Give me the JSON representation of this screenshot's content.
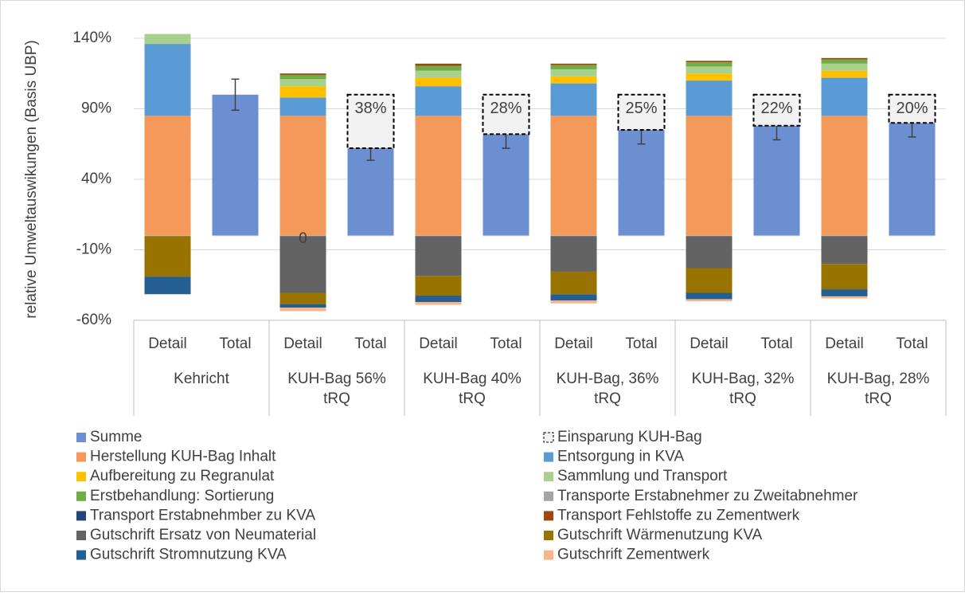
{
  "chart_data": {
    "type": "stacked_bar",
    "y_label": "relative Umweltauswikungen (Basis UBP)",
    "categories": [
      "Detail",
      "Total",
      "Detail",
      "Total",
      "Detail",
      "Total",
      "Detail",
      "Total",
      "Detail",
      "Total",
      "Detail",
      "Total"
    ],
    "groups": [
      "Kehricht",
      "KUH-Bag 56% tRQ",
      "KUH-Bag 40% tRQ",
      "KUH-Bag, 36% tRQ",
      "KUH-Bag, 32% tRQ",
      "KUH-Bag, 28% tRQ"
    ],
    "annotation": "0",
    "ylim": [
      -60,
      140
    ],
    "yticks": [
      {
        "value": -60,
        "label": "-60%"
      },
      {
        "value": -10,
        "label": "-10%"
      },
      {
        "value": 40,
        "label": "40%"
      },
      {
        "value": 90,
        "label": "90%"
      },
      {
        "value": 140,
        "label": "140%"
      }
    ],
    "grid": true,
    "series": [
      {
        "name": "Summe",
        "color": "#6b8fd1",
        "values": [
          null,
          100,
          null,
          62,
          null,
          72,
          null,
          75,
          null,
          78,
          null,
          80
        ],
        "errors": [
          null,
          11,
          null,
          8.5,
          null,
          10,
          null,
          10,
          null,
          10,
          null,
          10
        ]
      },
      {
        "name": "Einsparung KUH-Bag",
        "color": "#f2f2f2",
        "dashed": true,
        "values": [
          null,
          null,
          null,
          38,
          null,
          28,
          null,
          25,
          null,
          22,
          null,
          20
        ],
        "value_labels": [
          null,
          null,
          null,
          "38%",
          null,
          "28%",
          null,
          "25%",
          null,
          "22%",
          null,
          "20%"
        ]
      },
      {
        "name": "Herstellung KUH-Bag Inhalt",
        "color": "#f4995a",
        "values": [
          85,
          null,
          85,
          null,
          85,
          null,
          85,
          null,
          85,
          null,
          85,
          null
        ]
      },
      {
        "name": "Entsorgung in KVA",
        "color": "#5b9bd5",
        "values": [
          51,
          null,
          13,
          null,
          21,
          null,
          23,
          null,
          25,
          null,
          27,
          null
        ]
      },
      {
        "name": "Aufbereitung zu Regranulat",
        "color": "#ffc000",
        "values": [
          0,
          null,
          8,
          null,
          6,
          null,
          5,
          null,
          5,
          null,
          5,
          null
        ]
      },
      {
        "name": "Sammlung und Transport",
        "color": "#a9d18e",
        "values": [
          7,
          null,
          5,
          null,
          5,
          null,
          5,
          null,
          5,
          null,
          5,
          null
        ]
      },
      {
        "name": "Erstbehandlung: Sortierung",
        "color": "#70ad47",
        "values": [
          0,
          null,
          3,
          null,
          3.5,
          null,
          3,
          null,
          3,
          null,
          3,
          null
        ]
      },
      {
        "name": "Transporte Erstabnehmer zu Zweitabnehmer",
        "color": "#a5a5a5",
        "values": [
          0,
          null,
          0,
          null,
          0,
          null,
          0,
          null,
          0,
          null,
          0,
          null
        ]
      },
      {
        "name": "Transport Erstabnehmber zu KVA",
        "color": "#264478",
        "values": [
          0,
          null,
          0,
          null,
          0,
          null,
          0,
          null,
          0,
          null,
          0,
          null
        ]
      },
      {
        "name": "Transport Fehlstoffe zu Zementwerk",
        "color": "#9e480e",
        "values": [
          0,
          null,
          1,
          null,
          1.5,
          null,
          1,
          null,
          1,
          null,
          1,
          null
        ]
      },
      {
        "name": "Gutschrift Ersatz von Neumaterial",
        "color": "#636363",
        "values": [
          0,
          null,
          -40.5,
          null,
          -28.5,
          null,
          -25.5,
          null,
          -23,
          null,
          -20,
          null
        ]
      },
      {
        "name": "Gutschrift Wärmenutzung KVA",
        "color": "#997300",
        "values": [
          -29,
          null,
          -8,
          null,
          -14,
          null,
          -16,
          null,
          -17.5,
          null,
          -18,
          null
        ]
      },
      {
        "name": "Gutschrift Stromnutzung KVA",
        "color": "#255e91",
        "values": [
          -12.5,
          null,
          -2.5,
          null,
          -4.5,
          null,
          -4.5,
          null,
          -4.5,
          null,
          -5,
          null
        ]
      },
      {
        "name": "Gutschrift Zementwerk",
        "color": "#f8b48a",
        "values": [
          0,
          null,
          -2.5,
          null,
          -2,
          null,
          -2,
          null,
          -1.5,
          null,
          -1.5,
          null
        ]
      }
    ]
  }
}
